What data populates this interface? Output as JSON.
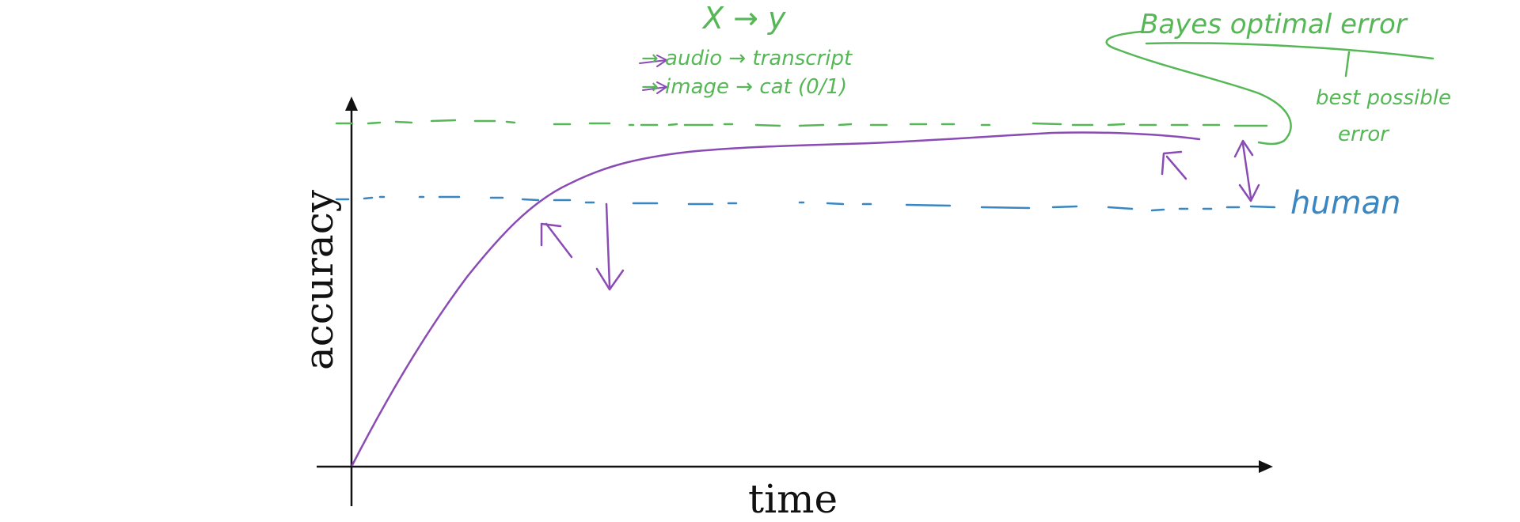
{
  "axes": {
    "y_label": "accuracy",
    "x_label": "time"
  },
  "notes": {
    "mapping": "X → y",
    "example_audio": "→ audio → transcript",
    "example_image": "→ image → cat (0/1)",
    "bayes_label": "Bayes optimal error",
    "best_possible_line1": "best possible",
    "best_possible_line2": "error",
    "human_label": "human"
  },
  "colors": {
    "axis": "#111111",
    "curve": "#8a4bb4",
    "bayes_line": "#55b755",
    "human_line": "#3a86c0",
    "annotation_green": "#55b755",
    "annotation_purple": "#8a4bb4"
  }
}
